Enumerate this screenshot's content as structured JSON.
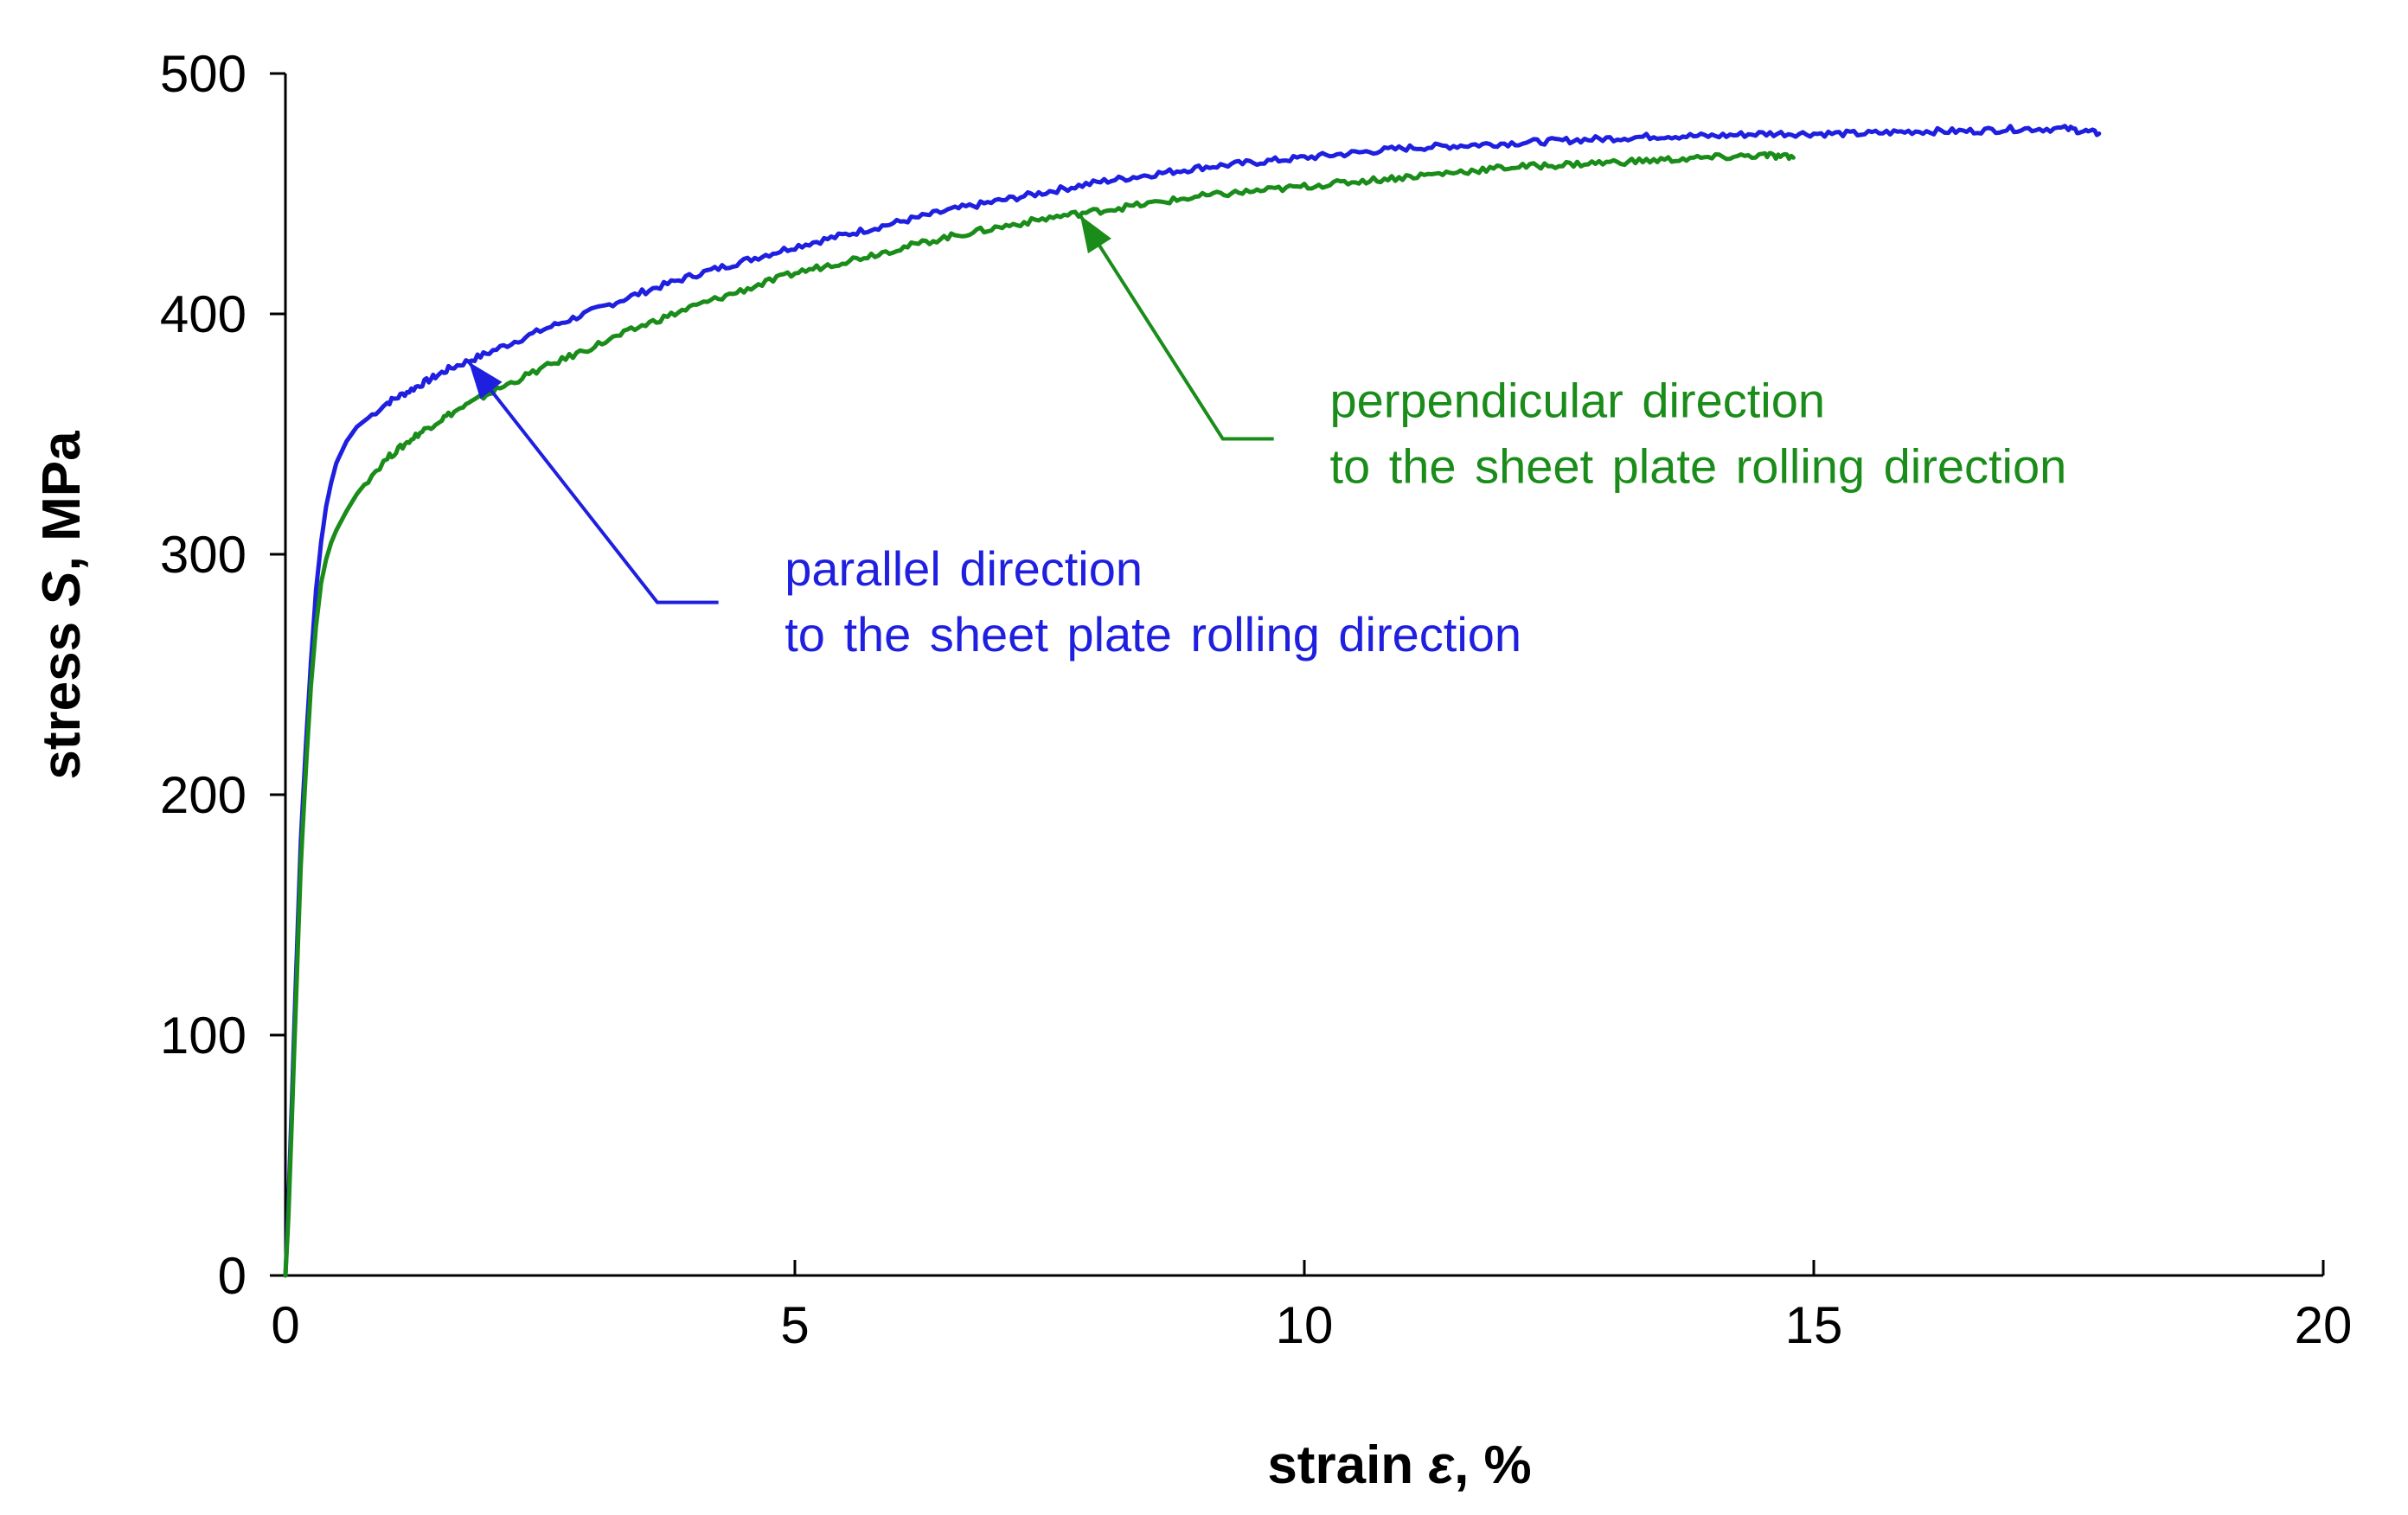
{
  "chart_data": {
    "type": "line",
    "title": "",
    "xlabel": {
      "prefix": "strain ",
      "symbol": "ε",
      "suffix": ", %"
    },
    "ylabel": {
      "prefix": "stress ",
      "symbol": "S",
      "suffix": ", MPa"
    },
    "xlim": [
      0,
      20
    ],
    "ylim": [
      0,
      500
    ],
    "xticks": [
      0,
      5,
      10,
      15,
      20
    ],
    "yticks": [
      0,
      100,
      200,
      300,
      400,
      500
    ],
    "grid": false,
    "series": [
      {
        "name": "parallel direction to the sheet plate rolling direction",
        "color": "#1f1fe0",
        "points": [
          [
            0,
            0
          ],
          [
            0.03,
            30
          ],
          [
            0.1,
            120
          ],
          [
            0.15,
            180
          ],
          [
            0.2,
            220
          ],
          [
            0.25,
            255
          ],
          [
            0.3,
            285
          ],
          [
            0.35,
            305
          ],
          [
            0.4,
            320
          ],
          [
            0.45,
            330
          ],
          [
            0.5,
            338
          ],
          [
            0.6,
            347
          ],
          [
            0.7,
            353
          ],
          [
            0.85,
            358
          ],
          [
            1.0,
            363
          ],
          [
            1.3,
            370
          ],
          [
            1.6,
            377
          ],
          [
            2.0,
            384
          ],
          [
            2.5,
            393
          ],
          [
            3.0,
            401
          ],
          [
            3.5,
            409
          ],
          [
            4.0,
            416
          ],
          [
            4.5,
            422
          ],
          [
            5.0,
            428
          ],
          [
            5.5,
            433
          ],
          [
            6.0,
            438
          ],
          [
            6.5,
            443
          ],
          [
            7.0,
            447
          ],
          [
            7.5,
            451
          ],
          [
            8.0,
            455
          ],
          [
            8.5,
            458
          ],
          [
            9.0,
            461
          ],
          [
            9.5,
            463
          ],
          [
            10.0,
            465
          ],
          [
            10.5,
            467
          ],
          [
            11.0,
            469
          ],
          [
            11.5,
            470
          ],
          [
            12.0,
            471
          ],
          [
            12.5,
            472
          ],
          [
            13.0,
            473
          ],
          [
            13.5,
            474
          ],
          [
            14.0,
            474
          ],
          [
            14.5,
            475
          ],
          [
            15.0,
            475
          ],
          [
            15.5,
            475
          ],
          [
            16.0,
            476
          ],
          [
            16.5,
            476
          ],
          [
            17.0,
            477
          ],
          [
            17.5,
            477
          ],
          [
            17.8,
            475
          ]
        ]
      },
      {
        "name": "perpendicular direction to the sheet plate rolling direction",
        "color": "#1a8c1a",
        "points": [
          [
            0,
            0
          ],
          [
            0.03,
            25
          ],
          [
            0.1,
            110
          ],
          [
            0.15,
            170
          ],
          [
            0.2,
            210
          ],
          [
            0.25,
            245
          ],
          [
            0.3,
            270
          ],
          [
            0.35,
            288
          ],
          [
            0.4,
            298
          ],
          [
            0.45,
            305
          ],
          [
            0.5,
            310
          ],
          [
            0.6,
            318
          ],
          [
            0.7,
            325
          ],
          [
            0.85,
            333
          ],
          [
            1.0,
            340
          ],
          [
            1.3,
            350
          ],
          [
            1.6,
            358
          ],
          [
            2.0,
            367
          ],
          [
            2.5,
            377
          ],
          [
            3.0,
            386
          ],
          [
            3.5,
            395
          ],
          [
            4.0,
            403
          ],
          [
            4.5,
            410
          ],
          [
            5.0,
            417
          ],
          [
            5.5,
            422
          ],
          [
            6.0,
            427
          ],
          [
            6.5,
            432
          ],
          [
            7.0,
            436
          ],
          [
            7.5,
            440
          ],
          [
            8.0,
            443
          ],
          [
            8.5,
            446
          ],
          [
            9.0,
            449
          ],
          [
            9.5,
            451
          ],
          [
            10.0,
            453
          ],
          [
            10.5,
            455
          ],
          [
            11.0,
            457
          ],
          [
            11.5,
            459
          ],
          [
            12.0,
            461
          ],
          [
            12.5,
            462
          ],
          [
            13.0,
            463
          ],
          [
            13.5,
            464
          ],
          [
            14.0,
            465
          ],
          [
            14.5,
            466
          ],
          [
            14.8,
            465
          ]
        ]
      }
    ],
    "annotations": [
      {
        "series": 0,
        "color": "#1f1fe0",
        "lines": [
          "parallel direction",
          "to the sheet plate rolling direction"
        ],
        "text_anchor": [
          4.9,
          287
        ],
        "arrow_tip": [
          1.8,
          380
        ],
        "arrow_elbow": [
          3.65,
          280
        ],
        "arrow_tail": [
          4.25,
          280
        ]
      },
      {
        "series": 1,
        "color": "#1a8c1a",
        "lines": [
          "perpendicular direction",
          "to the sheet plate rolling direction"
        ],
        "text_anchor": [
          10.25,
          357
        ],
        "arrow_tip": [
          7.8,
          441
        ],
        "arrow_elbow": [
          9.2,
          348
        ],
        "arrow_tail": [
          9.7,
          348
        ]
      }
    ]
  }
}
